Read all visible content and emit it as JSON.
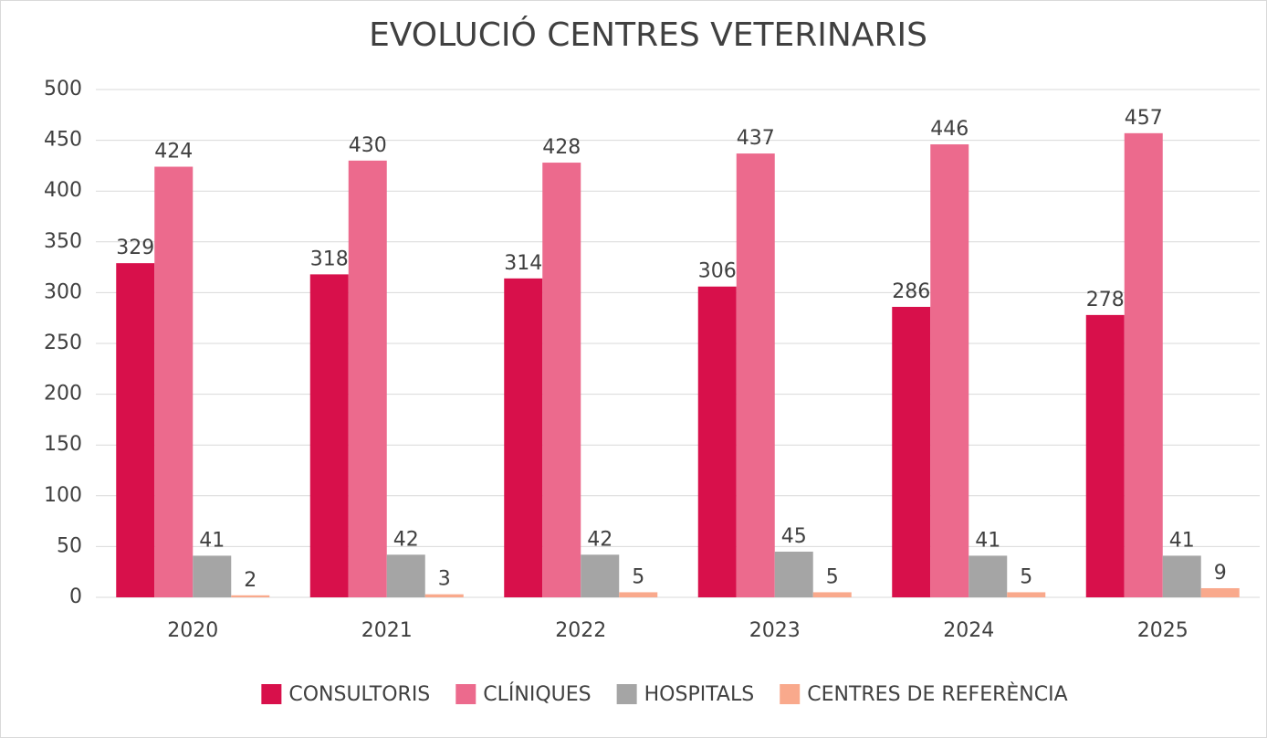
{
  "chart_data": {
    "type": "bar",
    "title": "EVOLUCIÓ CENTRES VETERINARIS",
    "categories": [
      "2020",
      "2021",
      "2022",
      "2023",
      "2024",
      "2025"
    ],
    "series": [
      {
        "name": "CONSULTORIS",
        "color": "#d8104b",
        "values": [
          329,
          318,
          314,
          306,
          286,
          278
        ]
      },
      {
        "name": "CLÍNIQUES",
        "color": "#ec6a8d",
        "values": [
          424,
          430,
          428,
          437,
          446,
          457
        ]
      },
      {
        "name": "HOSPITALS",
        "color": "#a5a5a5",
        "values": [
          41,
          42,
          42,
          45,
          41,
          41
        ]
      },
      {
        "name": "CENTRES DE REFERÈNCIA",
        "color": "#f9a98c",
        "values": [
          2,
          3,
          5,
          5,
          5,
          9
        ]
      }
    ],
    "ylim": [
      0,
      500
    ],
    "yticks": [
      0,
      50,
      100,
      150,
      200,
      250,
      300,
      350,
      400,
      450,
      500
    ],
    "grid": true,
    "legend": "bottom"
  }
}
